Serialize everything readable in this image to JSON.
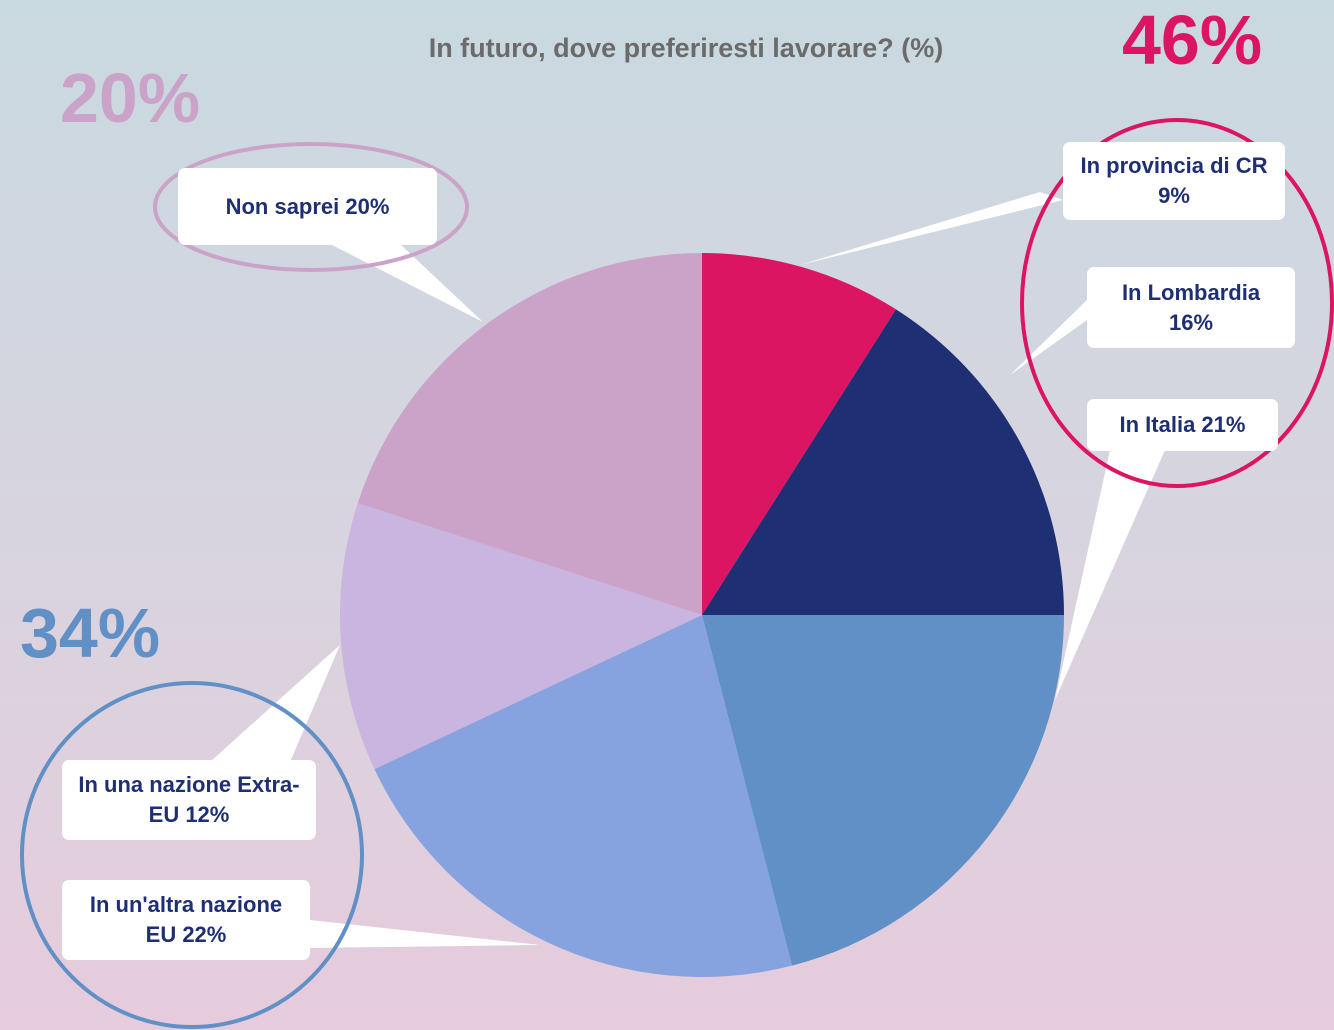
{
  "chart_data": {
    "type": "pie",
    "title": "In futuro, dove preferiresti lavorare? (%)",
    "categories": [
      "In provincia di CR 9%",
      "In Lombardia 16%",
      "In Italia 21%",
      "In un'altra nazione EU 22%",
      "In una nazione Extra-EU 12%",
      "Non saprei 20%"
    ],
    "values": [
      9,
      16,
      21,
      22,
      12,
      20
    ],
    "colors": [
      "#dc1563",
      "#1e2f73",
      "#6090c5",
      "#86a3e0",
      "#c9b5e0",
      "#cba3c9"
    ],
    "annotations": [
      {
        "text": "46%",
        "color": "#dc1563"
      },
      {
        "text": "34%",
        "color": "#6090c5"
      },
      {
        "text": "20%",
        "color": "#cba3c9"
      }
    ]
  }
}
